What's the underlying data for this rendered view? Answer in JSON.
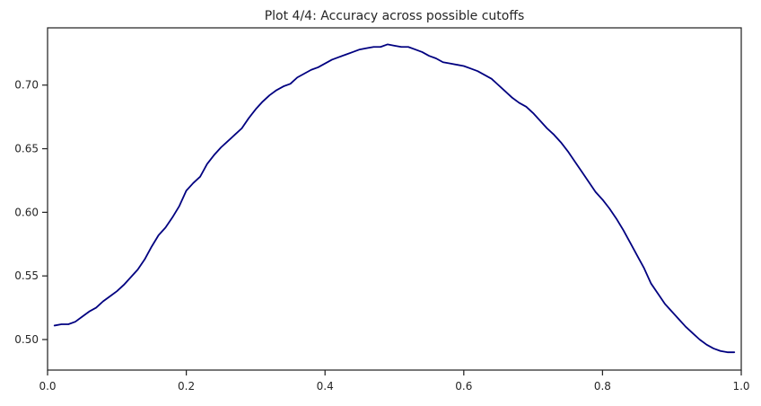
{
  "chart_data": {
    "type": "line",
    "title": "Plot 4/4: Accuracy across possible cutoffs",
    "xlabel": "",
    "ylabel": "",
    "xlim": [
      0.0,
      1.0
    ],
    "ylim": [
      0.476,
      0.745
    ],
    "xticks": [
      0.0,
      0.2,
      0.4,
      0.6,
      0.8,
      1.0
    ],
    "xtick_labels": [
      "0.0",
      "0.2",
      "0.4",
      "0.6",
      "0.8",
      "1.0"
    ],
    "yticks": [
      0.5,
      0.55,
      0.6,
      0.65,
      0.7
    ],
    "ytick_labels": [
      "0.50",
      "0.55",
      "0.60",
      "0.65",
      "0.70"
    ],
    "grid": false,
    "legend": "none",
    "series": [
      {
        "color": "#000080",
        "x": [
          0.01,
          0.02,
          0.03,
          0.04,
          0.05,
          0.06,
          0.07,
          0.08,
          0.09,
          0.1,
          0.11,
          0.12,
          0.13,
          0.14,
          0.15,
          0.16,
          0.17,
          0.18,
          0.19,
          0.2,
          0.21,
          0.22,
          0.23,
          0.24,
          0.25,
          0.26,
          0.27,
          0.28,
          0.29,
          0.3,
          0.31,
          0.32,
          0.33,
          0.34,
          0.35,
          0.36,
          0.37,
          0.38,
          0.39,
          0.4,
          0.41,
          0.42,
          0.43,
          0.44,
          0.45,
          0.46,
          0.47,
          0.48,
          0.49,
          0.5,
          0.51,
          0.52,
          0.53,
          0.54,
          0.55,
          0.56,
          0.57,
          0.58,
          0.59,
          0.6,
          0.61,
          0.62,
          0.63,
          0.64,
          0.65,
          0.66,
          0.67,
          0.68,
          0.69,
          0.7,
          0.71,
          0.72,
          0.73,
          0.74,
          0.75,
          0.76,
          0.77,
          0.78,
          0.79,
          0.8,
          0.81,
          0.82,
          0.83,
          0.84,
          0.85,
          0.86,
          0.87,
          0.88,
          0.89,
          0.9,
          0.91,
          0.92,
          0.93,
          0.94,
          0.95,
          0.96,
          0.97,
          0.98,
          0.99
        ],
        "values": [
          0.511,
          0.512,
          0.512,
          0.514,
          0.518,
          0.522,
          0.525,
          0.53,
          0.534,
          0.538,
          0.543,
          0.549,
          0.555,
          0.563,
          0.573,
          0.582,
          0.588,
          0.596,
          0.605,
          0.617,
          0.623,
          0.628,
          0.638,
          0.645,
          0.651,
          0.656,
          0.661,
          0.666,
          0.674,
          0.681,
          0.687,
          0.692,
          0.696,
          0.699,
          0.701,
          0.706,
          0.709,
          0.712,
          0.714,
          0.717,
          0.72,
          0.722,
          0.724,
          0.726,
          0.728,
          0.729,
          0.73,
          0.73,
          0.732,
          0.731,
          0.73,
          0.73,
          0.728,
          0.726,
          0.723,
          0.721,
          0.718,
          0.717,
          0.716,
          0.715,
          0.713,
          0.711,
          0.708,
          0.705,
          0.7,
          0.695,
          0.69,
          0.686,
          0.683,
          0.678,
          0.672,
          0.666,
          0.661,
          0.655,
          0.648,
          0.64,
          0.632,
          0.624,
          0.616,
          0.61,
          0.603,
          0.595,
          0.586,
          0.576,
          0.566,
          0.556,
          0.544,
          0.536,
          0.528,
          0.522,
          0.516,
          0.51,
          0.505,
          0.5,
          0.496,
          0.493,
          0.491,
          0.49,
          0.49
        ]
      }
    ]
  }
}
